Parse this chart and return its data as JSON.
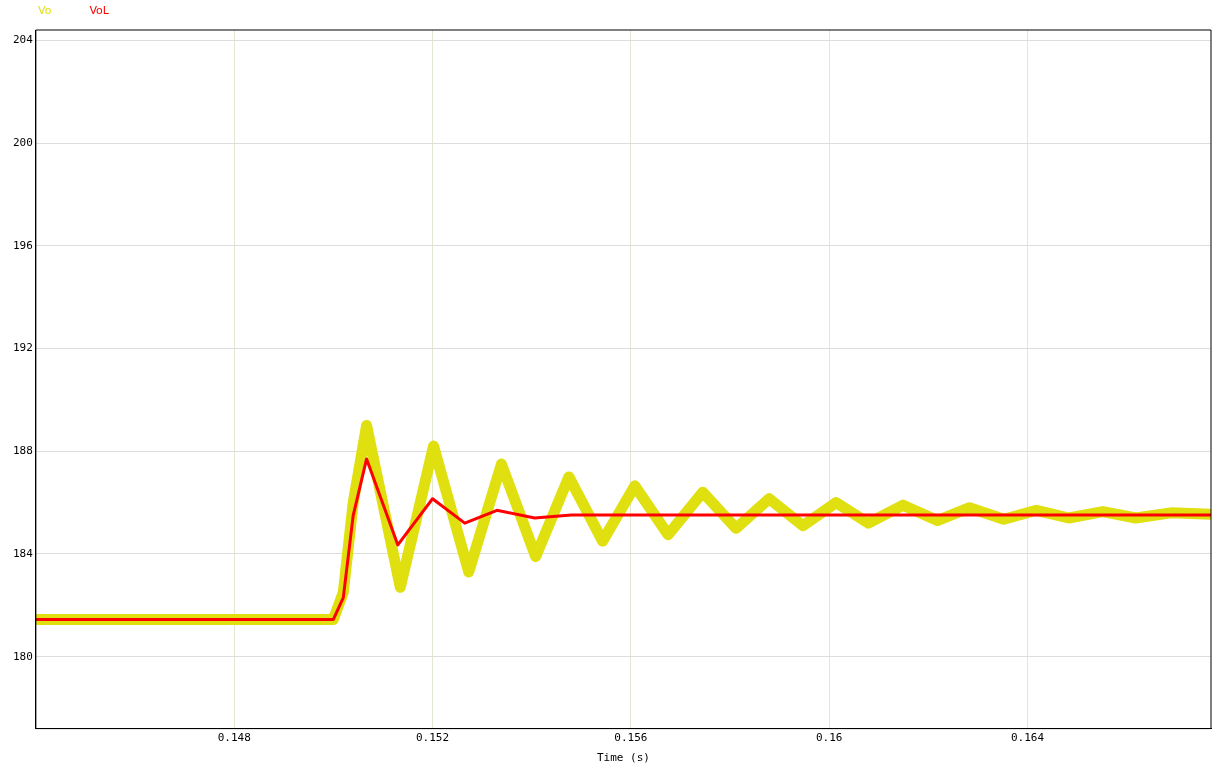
{
  "chart_data": {
    "type": "line",
    "xlabel": "Time (s)",
    "xlim": [
      0.144,
      0.1677
    ],
    "ylim": [
      177.2,
      204.4
    ],
    "xticks": [
      0.148,
      0.152,
      0.156,
      0.16,
      0.164
    ],
    "yticks": [
      180,
      184,
      188,
      192,
      196,
      200,
      204
    ],
    "grid": true,
    "legend": "top left",
    "marker": "none",
    "line_style": "solid",
    "series": [
      {
        "name": "Vo",
        "color": "#e0e010",
        "x": [
          0.144,
          0.15,
          0.1502,
          0.1504,
          0.15067,
          0.15135,
          0.15202,
          0.15273,
          0.15339,
          0.15408,
          0.15475,
          0.15543,
          0.15608,
          0.15675,
          0.15745,
          0.15812,
          0.15879,
          0.15947,
          0.16014,
          0.16079,
          0.16149,
          0.16218,
          0.16283,
          0.16352,
          0.16418,
          0.16483,
          0.16552,
          0.16618,
          0.16689,
          0.1677
        ],
        "values": [
          181.45,
          181.45,
          182.5,
          186,
          189,
          182.7,
          188.2,
          183.3,
          187.5,
          183.9,
          187,
          184.5,
          186.65,
          184.75,
          186.4,
          185,
          186.15,
          185.1,
          186,
          185.2,
          185.9,
          185.3,
          185.8,
          185.35,
          185.7,
          185.4,
          185.65,
          185.4,
          185.6,
          185.55
        ]
      },
      {
        "name": "VoL",
        "color": "#ff0000",
        "x": [
          0.144,
          0.15,
          0.1502,
          0.1504,
          0.15067,
          0.1513,
          0.152,
          0.15265,
          0.1533,
          0.15406,
          0.1548,
          0.1677
        ],
        "values": [
          181.45,
          181.45,
          182.3,
          185.5,
          187.7,
          184.35,
          186.15,
          185.2,
          185.7,
          185.4,
          185.52,
          185.52
        ]
      }
    ]
  }
}
